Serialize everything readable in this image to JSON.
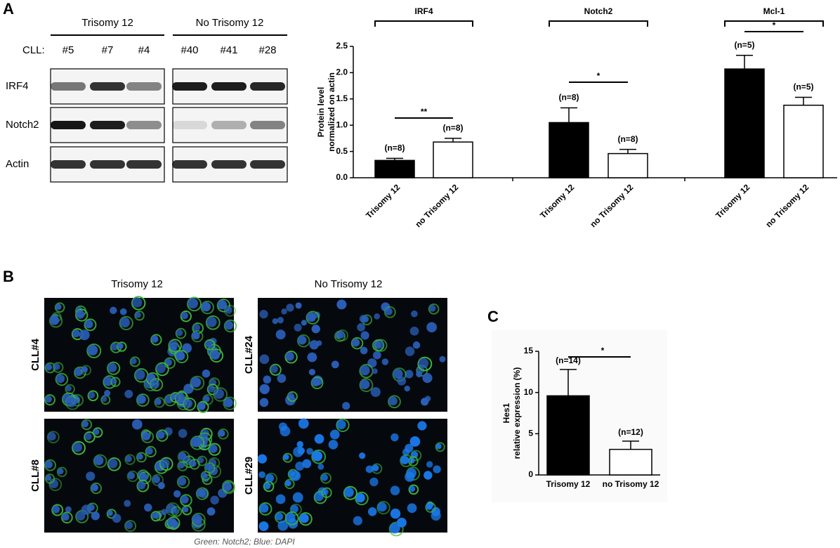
{
  "panel_labels": [
    "A",
    "B",
    "C"
  ],
  "western_blot": {
    "group_headers": [
      "Trisomy 12",
      "No Trisomy 12"
    ],
    "row_prefix": "CLL:",
    "samples": [
      "#5",
      "#7",
      "#4",
      "#40",
      "#41",
      "#28"
    ],
    "rows": [
      "IRF4",
      "Notch2",
      "Actin"
    ]
  },
  "chart_data": [
    {
      "type": "bar",
      "ylabel": [
        "Protein level",
        "normalized on actin"
      ],
      "categories": [
        "IRF4",
        "Notch2",
        "Mcl-1"
      ],
      "series": [
        {
          "name": "Trisomy 12",
          "color": "#000000",
          "values": [
            0.33,
            1.05,
            2.07
          ],
          "errors": [
            0.04,
            0.28,
            0.26
          ],
          "n_labels": [
            "(n=8)",
            "(n=8)",
            "(n=5)"
          ]
        },
        {
          "name": "no Trisomy 12",
          "color": "#ffffff",
          "values": [
            0.68,
            0.46,
            1.38
          ],
          "errors": [
            0.07,
            0.08,
            0.15
          ],
          "n_labels": [
            "(n=8)",
            "(n=8)",
            "(n=5)"
          ]
        }
      ],
      "significance": [
        "**",
        "*",
        "*"
      ],
      "ylim": [
        0,
        2.5
      ],
      "yticks": [
        {
          "value": 0,
          "label": "0.0"
        },
        0.5,
        {
          "value": 1,
          "label": "1.0"
        },
        1.5,
        {
          "value": 2,
          "label": "2.0"
        },
        2.5
      ]
    },
    {
      "type": "bar",
      "ylabel": [
        "Hes1",
        "relative expression (%)"
      ],
      "categories": [
        "Trisomy 12",
        "no Trisomy 12"
      ],
      "colors": [
        "#000000",
        "#ffffff"
      ],
      "values": [
        9.6,
        3.1
      ],
      "errors": [
        3.2,
        1.0
      ],
      "n_labels": [
        "(n=14)",
        "(n=12)"
      ],
      "significance": "*",
      "ylim": [
        0,
        15
      ],
      "yticks": [
        0,
        5,
        10,
        15
      ]
    }
  ],
  "microscopy": {
    "column_headers": [
      "Trisomy 12",
      "No Trisomy 12"
    ],
    "image_labels": [
      "CLL#4",
      "CLL#24",
      "CLL#8",
      "CLL#29"
    ],
    "caption": "Green: Notch2; Blue: DAPI"
  }
}
